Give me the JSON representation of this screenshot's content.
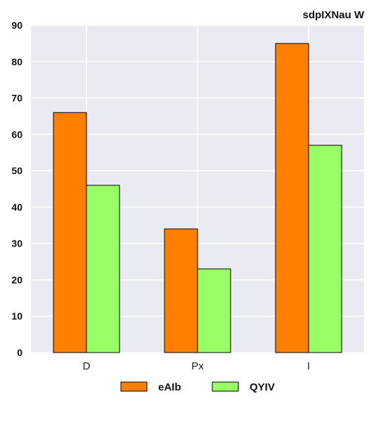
{
  "chart_data": {
    "type": "bar",
    "title": "sdpIXNau W",
    "xlabel": "",
    "ylabel": "",
    "categories": [
      "D",
      "Px",
      "I"
    ],
    "series": [
      {
        "name": "eAIb",
        "values": [
          66,
          34,
          85
        ],
        "color": "#ff7f00"
      },
      {
        "name": "QYIV",
        "values": [
          46,
          23,
          57
        ],
        "color": "#99ff66"
      }
    ],
    "ylim": [
      0,
      90
    ],
    "yticks": [
      0,
      10,
      20,
      30,
      40,
      50,
      60,
      70,
      80,
      90
    ],
    "grid": true,
    "plot_background": "#eaeaf2",
    "legend_position": "bottom-center"
  }
}
